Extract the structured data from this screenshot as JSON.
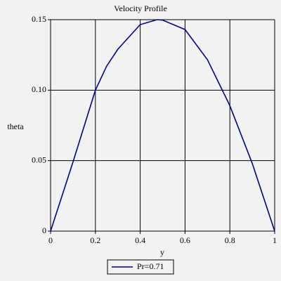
{
  "chart_data": {
    "type": "line",
    "title": "Velocity Profile",
    "xlabel": "y",
    "ylabel": "theta",
    "x": [
      0,
      0.1,
      0.2,
      0.25,
      0.3,
      0.4,
      0.475,
      0.5,
      0.6,
      0.7,
      0.8,
      0.9,
      1
    ],
    "series": [
      {
        "name": "Pr=0.71",
        "color": "#00008b",
        "values": [
          0,
          0.049,
          0.1,
          0.117,
          0.129,
          0.1465,
          0.15,
          0.1497,
          0.143,
          0.1216,
          0.089,
          0.048,
          0
        ]
      }
    ],
    "xlim": [
      0,
      1
    ],
    "xticks": [
      0,
      0.2,
      0.4,
      0.6,
      0.8,
      1
    ],
    "ylim": [
      0,
      0.15
    ],
    "yticks": [
      0,
      0.05,
      {
        "value": 0.1,
        "label": "0.10"
      },
      0.15
    ],
    "grid": true,
    "legend": "bottom"
  }
}
